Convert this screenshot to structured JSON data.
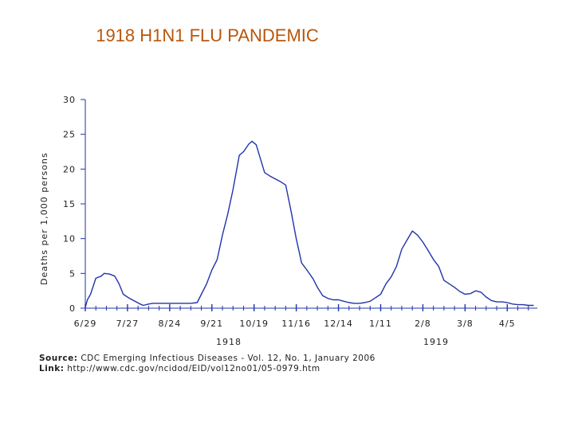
{
  "title": "1918 H1N1 FLU PANDEMIC",
  "source": {
    "source_label": "Source:",
    "source_text": "CDC Emerging Infectious Diseases - Vol. 12, No. 1, January 2006",
    "link_label": "Link:",
    "link_text": "http://www.cdc.gov/ncidod/EID/vol12no01/05-0979.htm"
  },
  "colors": {
    "line": "#2233aa",
    "axis": "#2233aa",
    "title": "#b8560c"
  },
  "chart_data": {
    "type": "line",
    "title": "",
    "ylabel": "Deaths per 1,000 persons",
    "xlabel": "",
    "ylim": [
      0,
      30
    ],
    "yticks": [
      "0",
      "5",
      "10",
      "15",
      "20",
      "25",
      "30"
    ],
    "xticks": [
      "6/29",
      "7/27",
      "8/24",
      "9/21",
      "10/19",
      "11/16",
      "12/14",
      "1/11",
      "2/8",
      "3/8",
      "4/5"
    ],
    "year_labels": [
      "1918",
      "1919"
    ],
    "grid": false,
    "series": [
      {
        "x": [
          0,
          0.2,
          0.5,
          1.0,
          1.5,
          1.8,
          2.3,
          2.8,
          3.2,
          3.6,
          4.2,
          4.7,
          5.2,
          5.5,
          6.0,
          6.4,
          7.0,
          7.6,
          8.0,
          8.5,
          9.0,
          9.5,
          10.0,
          10.6,
          11.0,
          11.5,
          12.0,
          12.5,
          13.0,
          13.5,
          14.0,
          14.6,
          15.0,
          15.5,
          15.8,
          16.2,
          16.6,
          17.0,
          17.5,
          18.0,
          18.5,
          19.0,
          19.5,
          20.0,
          20.5,
          21.0,
          21.6,
          22.0,
          22.5,
          23.0,
          23.5,
          24.0,
          24.5,
          25.0,
          25.5,
          26.0,
          26.5,
          27.0,
          27.5,
          28.0,
          28.5,
          29.0,
          29.5,
          30.0,
          30.5,
          31.0,
          31.5,
          32.0,
          32.5,
          33.0,
          33.5,
          34.0,
          34.5,
          35.0,
          35.5,
          36.0,
          36.5,
          37.0,
          37.5,
          38.0,
          38.5,
          39.0,
          39.5,
          40.0,
          40.5,
          41.0,
          41.5,
          42.0,
          42.5
        ],
        "values": [
          0.1,
          1.2,
          2.0,
          4.3,
          4.6,
          5.0,
          4.9,
          4.6,
          3.5,
          2.0,
          1.4,
          1.0,
          0.6,
          0.4,
          0.6,
          0.7,
          0.7,
          0.7,
          0.7,
          0.7,
          0.7,
          0.7,
          0.7,
          0.8,
          2.0,
          3.5,
          5.5,
          7.0,
          10.5,
          13.5,
          17.0,
          22.0,
          22.5,
          23.6,
          24.0,
          23.5,
          21.5,
          19.5,
          19.0,
          18.6,
          18.2,
          17.7,
          14.0,
          10.0,
          6.5,
          5.5,
          4.2,
          3.0,
          1.8,
          1.4,
          1.2,
          1.2,
          1.0,
          0.8,
          0.7,
          0.7,
          0.8,
          1.0,
          1.5,
          2.0,
          3.5,
          4.5,
          6.0,
          8.5,
          9.8,
          11.1,
          10.5,
          9.5,
          8.3,
          7.0,
          6.0,
          4.0,
          3.5,
          3.0,
          2.4,
          2.0,
          2.1,
          2.5,
          2.3,
          1.6,
          1.1,
          0.9,
          0.9,
          0.8,
          0.6,
          0.5,
          0.5,
          0.4,
          0.4
        ]
      }
    ],
    "x_tick_positions": [
      0,
      4,
      8,
      12,
      16,
      20,
      24,
      28,
      32,
      36,
      40
    ]
  }
}
